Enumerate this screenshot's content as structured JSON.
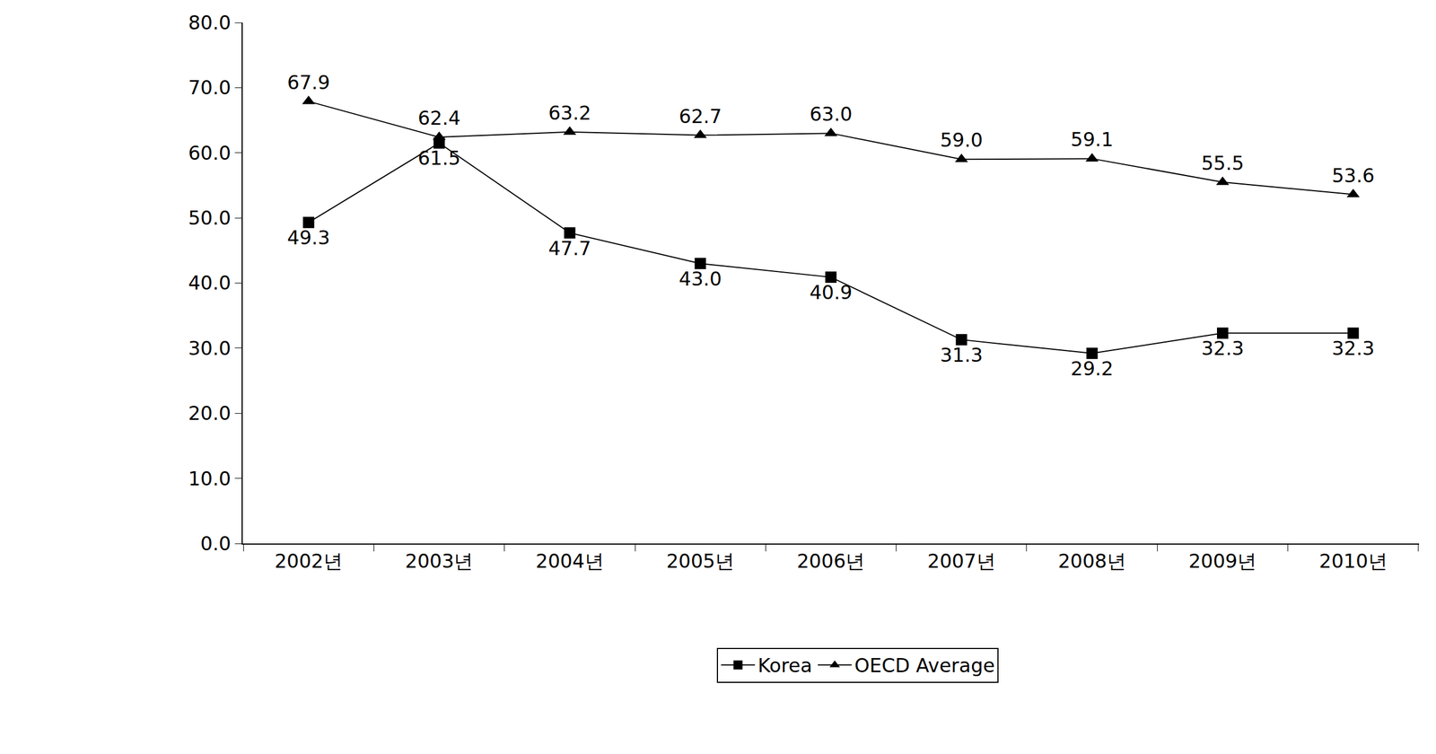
{
  "chart_data": {
    "type": "line",
    "categories": [
      "2002년",
      "2003년",
      "2004년",
      "2005년",
      "2006년",
      "2007년",
      "2008년",
      "2009년",
      "2010년"
    ],
    "series": [
      {
        "name": "Korea",
        "color": "#000000",
        "marker": "square",
        "line_style": "solid",
        "values": [
          49.3,
          61.5,
          47.7,
          43.0,
          40.9,
          31.3,
          29.2,
          32.3,
          32.3
        ],
        "value_labels": [
          "49.3",
          "61.5",
          "47.7",
          "43.0",
          "40.9",
          "31.3",
          "29.2",
          "32.3",
          "32.3"
        ]
      },
      {
        "name": "OECD Average",
        "color": "#000000",
        "marker": "triangle-up",
        "line_style": "solid",
        "values": [
          67.9,
          62.4,
          63.2,
          62.7,
          63.0,
          59.0,
          59.1,
          55.5,
          53.6
        ],
        "value_labels": [
          "67.9",
          "62.4",
          "63.2",
          "62.7",
          "63.0",
          "59.0",
          "59.1",
          "55.5",
          "53.6"
        ]
      }
    ],
    "ylim": [
      0,
      80
    ],
    "yticks": [
      {
        "value": 0,
        "label": "0.0"
      },
      {
        "value": 10,
        "label": "10.0"
      },
      {
        "value": 20,
        "label": "20.0"
      },
      {
        "value": 30,
        "label": "30.0"
      },
      {
        "value": 40,
        "label": "40.0"
      },
      {
        "value": 50,
        "label": "50.0"
      },
      {
        "value": 60,
        "label": "60.0"
      },
      {
        "value": 70,
        "label": "70.0"
      },
      {
        "value": 80,
        "label": "80.0"
      }
    ],
    "grid": false,
    "data_labels": true,
    "legend": "bottom"
  }
}
